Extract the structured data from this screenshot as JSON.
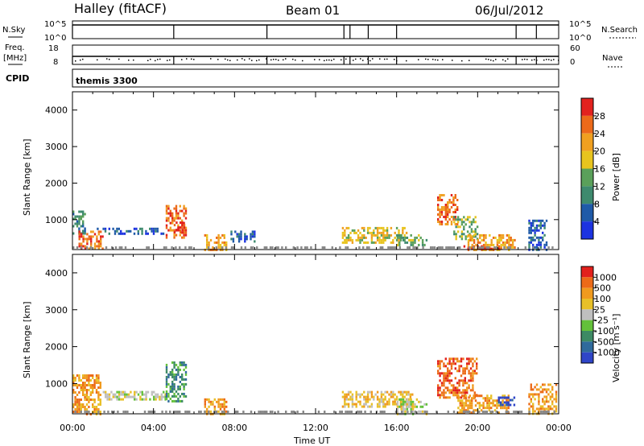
{
  "header": {
    "site": "Halley (fitACF)",
    "beam": "Beam 01",
    "date": "06/Jul/2012"
  },
  "nsky_panel": {
    "left_label": "N.Sky",
    "left_ticks": [
      "10^5",
      "10^0"
    ],
    "right_label": "N.Search",
    "right_ticks": [
      "10^5",
      "10^0"
    ]
  },
  "freq_panel": {
    "left_label_1": "Freq.",
    "left_label_2": "[MHz]",
    "left_ticks": [
      "18",
      "8"
    ],
    "right_label": "Nave",
    "right_ticks": [
      "60",
      "0"
    ]
  },
  "cpid": {
    "label": "CPID",
    "value": "themis 3300"
  },
  "colors": {
    "power": [
      "#1c33e0",
      "#1f5aa8",
      "#3e8a6e",
      "#5aa05a",
      "#e8c41e",
      "#f0a020",
      "#ec6a1a",
      "#e2221e"
    ],
    "velocity": [
      "#2f45c8",
      "#2f6a9c",
      "#3d8a64",
      "#63c13a",
      "#bfbfbf",
      "#e8c028",
      "#f09a1e",
      "#ec6a18",
      "#e2201c"
    ]
  },
  "chart_data": [
    {
      "type": "heatmap",
      "ylabel": "Slant Range [km]",
      "yticks": [
        "1000",
        "2000",
        "3000",
        "4000"
      ],
      "ylim": [
        180,
        4500
      ],
      "colorbar": {
        "label": "Power [dB]",
        "ticks": [
          "4",
          "8",
          "12",
          "16",
          "20",
          "24",
          "28"
        ]
      },
      "regions": [
        {
          "t0": 0.0,
          "t1": 0.6,
          "r0": 600,
          "r1": 1250,
          "level": 2
        },
        {
          "t0": 0.3,
          "t1": 1.5,
          "r0": 200,
          "r1": 700,
          "level": 6
        },
        {
          "t0": 1.2,
          "t1": 4.5,
          "r0": 600,
          "r1": 780,
          "level": 1
        },
        {
          "t0": 4.6,
          "t1": 5.6,
          "r0": 500,
          "r1": 1400,
          "level": 6
        },
        {
          "t0": 5.0,
          "t1": 5.5,
          "r0": 650,
          "r1": 950,
          "level": 7
        },
        {
          "t0": 6.5,
          "t1": 7.6,
          "r0": 200,
          "r1": 600,
          "level": 5
        },
        {
          "t0": 7.8,
          "t1": 9.0,
          "r0": 400,
          "r1": 700,
          "level": 1
        },
        {
          "t0": 13.3,
          "t1": 16.5,
          "r0": 400,
          "r1": 800,
          "level": 4
        },
        {
          "t0": 16.0,
          "t1": 17.5,
          "r0": 300,
          "r1": 600,
          "level": 3
        },
        {
          "t0": 18.0,
          "t1": 19.0,
          "r0": 900,
          "r1": 1700,
          "level": 6
        },
        {
          "t0": 18.8,
          "t1": 20.0,
          "r0": 500,
          "r1": 1100,
          "level": 3
        },
        {
          "t0": 19.5,
          "t1": 21.8,
          "r0": 200,
          "r1": 600,
          "level": 5
        },
        {
          "t0": 19.3,
          "t1": 21.3,
          "r0": 200,
          "r1": 300,
          "level": 7
        },
        {
          "t0": 22.5,
          "t1": 23.4,
          "r0": 200,
          "r1": 1000,
          "level": 1
        }
      ]
    },
    {
      "type": "heatmap",
      "ylabel": "Slant Range [km]",
      "yticks": [
        "1000",
        "2000",
        "3000",
        "4000"
      ],
      "ylim": [
        180,
        4500
      ],
      "xlabel": "Time UT",
      "xticks": [
        "00:00",
        "04:00",
        "08:00",
        "12:00",
        "16:00",
        "20:00",
        "00:00"
      ],
      "xlim": [
        0,
        24
      ],
      "colorbar": {
        "label": "Velocity [m s⁻¹]",
        "ticks": [
          "1000",
          "500",
          "100",
          "25",
          "-25",
          "-100",
          "-500",
          "-1000"
        ]
      },
      "regions": [
        {
          "t0": 0.0,
          "t1": 1.4,
          "r0": 200,
          "r1": 1250,
          "level": 6
        },
        {
          "t0": 1.4,
          "t1": 4.6,
          "r0": 600,
          "r1": 800,
          "level": 4
        },
        {
          "t0": 4.6,
          "t1": 5.6,
          "r0": 500,
          "r1": 1600,
          "level": 2
        },
        {
          "t0": 6.5,
          "t1": 7.6,
          "r0": 200,
          "r1": 600,
          "level": 6
        },
        {
          "t0": 13.3,
          "t1": 16.8,
          "r0": 400,
          "r1": 800,
          "level": 5
        },
        {
          "t0": 16.0,
          "t1": 17.5,
          "r0": 200,
          "r1": 600,
          "level": 4
        },
        {
          "t0": 18.0,
          "t1": 20.0,
          "r0": 600,
          "r1": 1700,
          "level": 7
        },
        {
          "t0": 19.0,
          "t1": 21.5,
          "r0": 200,
          "r1": 700,
          "level": 6
        },
        {
          "t0": 21.0,
          "t1": 21.8,
          "r0": 400,
          "r1": 650,
          "level": 0
        },
        {
          "t0": 22.5,
          "t1": 23.9,
          "r0": 200,
          "r1": 1000,
          "level": 6
        }
      ]
    }
  ]
}
